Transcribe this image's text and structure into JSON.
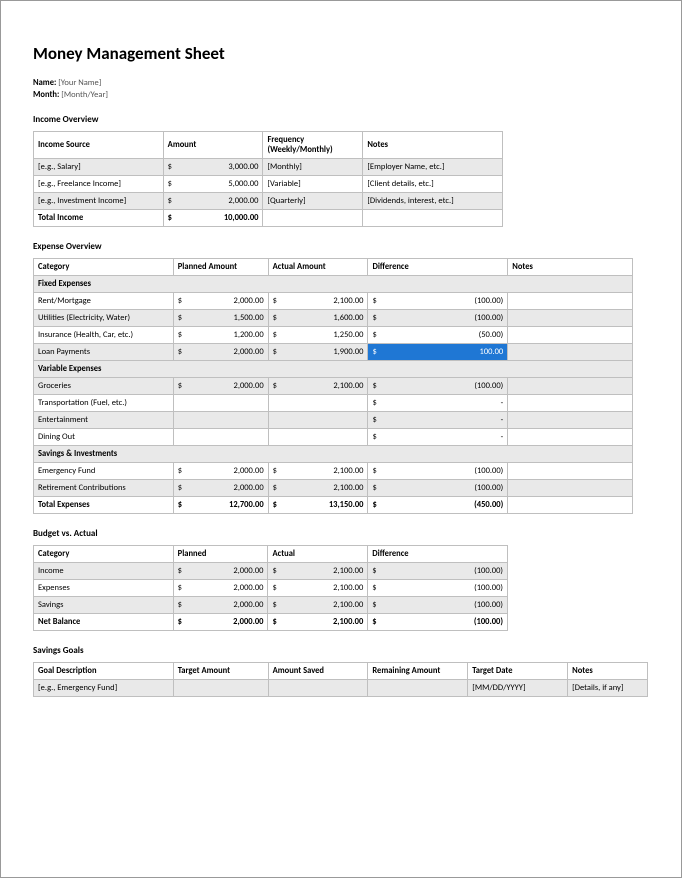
{
  "title": "Money Management Sheet",
  "meta": {
    "name_label": "Name:",
    "name_value": "[Your Name]",
    "month_label": "Month:",
    "month_value": "[Month/Year]"
  },
  "income": {
    "section": "Income Overview",
    "headers": {
      "c1": "Income Source",
      "c2": "Amount",
      "c3": "Frequency (Weekly/Monthly)",
      "c4": "Notes"
    },
    "rows": [
      {
        "c1": "[e.g., Salary]",
        "c2": "3,000.00",
        "c3": "[Monthly]",
        "c4": "[Employer Name, etc.]",
        "gray": true
      },
      {
        "c1": "[e.g., Freelance Income]",
        "c2": "5,000.00",
        "c3": "[Variable]",
        "c4": "[Client details, etc.]",
        "gray": false
      },
      {
        "c1": "[e.g., Investment Income]",
        "c2": "2,000.00",
        "c3": "[Quarterly]",
        "c4": "[Dividends, interest, etc.]",
        "gray": true
      }
    ],
    "total": {
      "c1": "Total Income",
      "c2": "10,000.00"
    }
  },
  "expense": {
    "section": "Expense Overview",
    "headers": {
      "c1": "Category",
      "c2": "Planned Amount",
      "c3": "Actual Amount",
      "c4": "Difference",
      "c5": "Notes"
    },
    "sub1": "Fixed Expenses",
    "rows1": [
      {
        "c1": "Rent/Mortgage",
        "c2": "2,000.00",
        "c3": "2,100.00",
        "c4": "(100.00)",
        "gray": false
      },
      {
        "c1": "Utilities (Electricity, Water)",
        "c2": "1,500.00",
        "c3": "1,600.00",
        "c4": "(100.00)",
        "gray": true
      },
      {
        "c1": "Insurance (Health, Car, etc.)",
        "c2": "1,200.00",
        "c3": "1,250.00",
        "c4": "(50.00)",
        "gray": false
      },
      {
        "c1": "Loan Payments",
        "c2": "2,000.00",
        "c3": "1,900.00",
        "c4": "100.00",
        "gray": true,
        "hl4": true
      }
    ],
    "sub2": "Variable Expenses",
    "rows2": [
      {
        "c1": "Groceries",
        "c2": "2,000.00",
        "c3": "2,100.00",
        "c4": "(100.00)",
        "gray": true,
        "money": true
      },
      {
        "c1": "Transportation (Fuel, etc.)",
        "c2": "",
        "c3": "",
        "c4": "-",
        "gray": false,
        "money": false
      },
      {
        "c1": "Entertainment",
        "c2": "",
        "c3": "",
        "c4": "-",
        "gray": true,
        "money": false
      },
      {
        "c1": "Dining Out",
        "c2": "",
        "c3": "",
        "c4": "-",
        "gray": false,
        "money": false
      }
    ],
    "sub3": "Savings & Investments",
    "rows3": [
      {
        "c1": "Emergency Fund",
        "c2": "2,000.00",
        "c3": "2,100.00",
        "c4": "(100.00)",
        "gray": false
      },
      {
        "c1": "Retirement Contributions",
        "c2": "2,000.00",
        "c3": "2,100.00",
        "c4": "(100.00)",
        "gray": true
      }
    ],
    "total": {
      "c1": "Total Expenses",
      "c2": "12,700.00",
      "c3": "13,150.00",
      "c4": "(450.00)"
    }
  },
  "budget": {
    "section": "Budget vs. Actual",
    "headers": {
      "c1": "Category",
      "c2": "Planned",
      "c3": "Actual",
      "c4": "Difference"
    },
    "rows": [
      {
        "c1": "Income",
        "c2": "2,000.00",
        "c3": "2,100.00",
        "c4": "(100.00)",
        "gray": true
      },
      {
        "c1": "Expenses",
        "c2": "2,000.00",
        "c3": "2,100.00",
        "c4": "(100.00)",
        "gray": false
      },
      {
        "c1": "Savings",
        "c2": "2,000.00",
        "c3": "2,100.00",
        "c4": "(100.00)",
        "gray": true
      }
    ],
    "total": {
      "c1": "Net Balance",
      "c2": "2,000.00",
      "c3": "2,100.00",
      "c4": "(100.00)"
    }
  },
  "goals": {
    "section": "Savings Goals",
    "headers": {
      "c1": "Goal Description",
      "c2": "Target Amount",
      "c3": "Amount Saved",
      "c4": "Remaining Amount",
      "c5": "Target Date",
      "c6": "Notes"
    },
    "rows": [
      {
        "c1": "[e.g., Emergency Fund]",
        "c2": "",
        "c3": "",
        "c4": "",
        "c5": "[MM/DD/YYYY]",
        "c6": "[Details, if any]",
        "gray": true
      }
    ]
  },
  "colors": {
    "highlight": "#1f77d4",
    "grid": "#bfbfbf",
    "row_alt": "#e9e9e9"
  }
}
